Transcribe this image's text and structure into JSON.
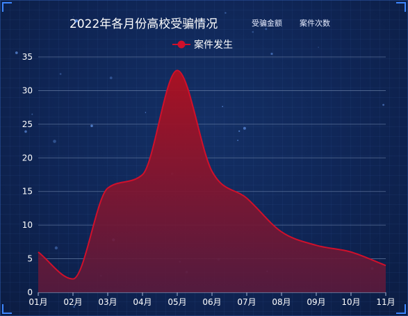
{
  "header": {
    "title": "2022年各月份高校受骗情况",
    "tabs": [
      {
        "label": "受骗金额"
      },
      {
        "label": "案件次数"
      }
    ]
  },
  "colors": {
    "line": "#d0102b",
    "area_top": "#b01020",
    "area_bottom": "#5a1a3c",
    "axis_text": "#ffffff",
    "grid": "#6f86ad"
  },
  "chart_data": {
    "type": "area",
    "title": "2022年各月份高校受骗情况",
    "categories": [
      "01月",
      "02月",
      "03月",
      "04月",
      "05月",
      "06月",
      "07月",
      "08月",
      "09月",
      "10月",
      "11月"
    ],
    "series": [
      {
        "name": "案件发生",
        "values": [
          6,
          2,
          15.5,
          17.5,
          33,
          18,
          14,
          9,
          7,
          6,
          4
        ]
      }
    ],
    "ylim": [
      0,
      35
    ],
    "yticks": [
      0,
      5,
      10,
      15,
      20,
      25,
      30,
      35
    ],
    "grid": true,
    "legend": "top-center",
    "smooth": true
  }
}
